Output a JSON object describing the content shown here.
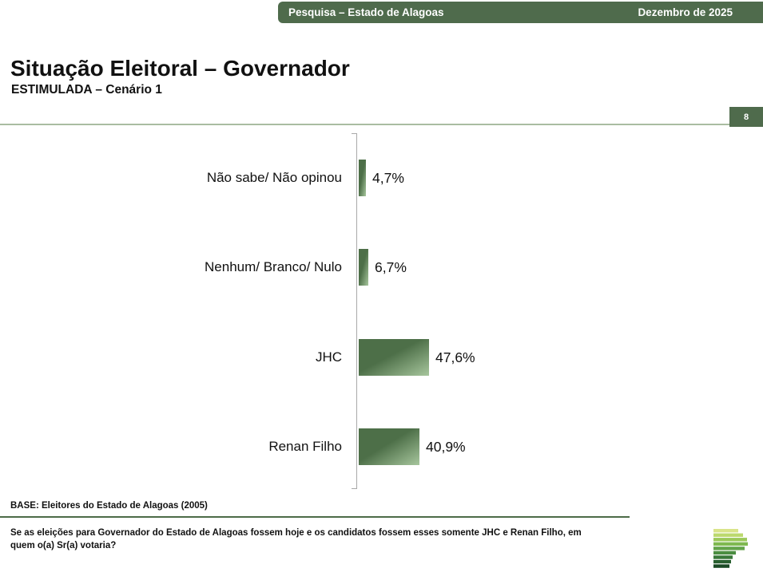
{
  "header": {
    "left": "Pesquisa – Estado de Alagoas",
    "right": "Dezembro de 2025"
  },
  "title": "Situação Eleitoral – Governador",
  "subtitle": "ESTIMULADA – Cenário 1",
  "page_number": "8",
  "chart_data": {
    "type": "bar",
    "orientation": "horizontal",
    "categories": [
      "Não sabe/ Não opinou",
      "Nenhum/ Branco/ Nulo",
      "JHC",
      "Renan Filho"
    ],
    "values": [
      4.7,
      6.7,
      47.6,
      40.9
    ],
    "value_labels": [
      "4,7%",
      "6,7%",
      "47,6%",
      "40,9%"
    ],
    "xlim": [
      0,
      100
    ],
    "grid": false,
    "legend": false,
    "axis_color": "#a8a8a8",
    "bar_color_dark": "#4d6f48",
    "bar_color_light": "#a7c69d"
  },
  "footer": {
    "base": "BASE: Eleitores do Estado de Alagoas (2005)",
    "question": "Se as eleições para Governador do Estado de Alagoas fossem hoje e os candidatos fossem esses somente JHC e Renan Filho, em quem o(a) Sr(a) votaria?"
  },
  "colors": {
    "header_green": "#4f6b4c",
    "badge_green": "#4f6b4c",
    "divider_sage": "#a9bda1",
    "base_line_green": "#4c6b47"
  },
  "logo": {
    "name": "stacked-green-bars-logo",
    "bars": [
      {
        "w": 31,
        "c": "#d9e48a"
      },
      {
        "w": 37,
        "c": "#bcd96e"
      },
      {
        "w": 42,
        "c": "#9cc95a"
      },
      {
        "w": 43,
        "c": "#7fb950"
      },
      {
        "w": 39,
        "c": "#63a44a"
      },
      {
        "w": 28,
        "c": "#4b8e41"
      },
      {
        "w": 24,
        "c": "#397839"
      },
      {
        "w": 22,
        "c": "#28602f"
      },
      {
        "w": 20,
        "c": "#1a4a25"
      }
    ]
  }
}
